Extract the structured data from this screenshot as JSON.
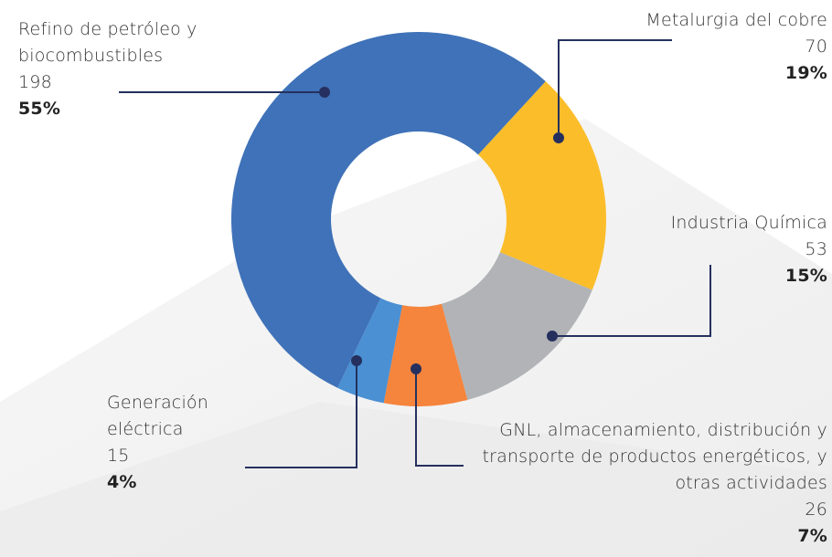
{
  "chart_data": {
    "type": "donut",
    "categories": [
      "Metalurgia del cobre",
      "Industria Química",
      "GNL, almacenamiento, distribución y transporte de productos energéticos, y otras actividades",
      "Generación eléctrica",
      "Refino de petróleo y biocombustibles"
    ],
    "values": [
      70,
      53,
      26,
      15,
      198
    ],
    "percent_labels": [
      "19%",
      "15%",
      "7%",
      "4%",
      "55%"
    ],
    "colors": [
      "#fbbd2a",
      "#b1b3b6",
      "#f5843c",
      "#4a90d3",
      "#3f72b8"
    ]
  }
}
